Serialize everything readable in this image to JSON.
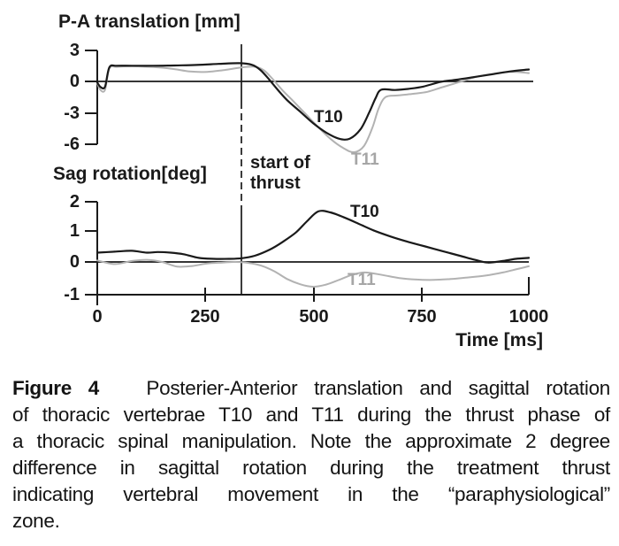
{
  "caption": {
    "label": "Figure 4",
    "line1_rest": "Posterier-Anterior translation and sagittal rotation",
    "lines": [
      "of thoracic vertebrae T10 and T11 during the thrust phase of",
      "a thoracic spinal manipulation. Note the approximate 2 degree",
      "difference in sagittal rotation during the treatment thrust",
      "indicating vertebral movement in the “paraphysiological”",
      "zone."
    ],
    "full_text": "Figure 4 Posterier-Anterior translation and sagittal rotation of thoracic vertebrae T10 and T11 during the thrust phase of a thoracic spinal manipulation. Note the approximate 2 degree difference in sagittal rotation during the treatment thrust indicating vertebral movement in the “paraphysiological” zone."
  },
  "annotation": {
    "start_of_thrust_label": "start of\nthrust",
    "thrust_line_time_ms": 334
  },
  "colors": {
    "t10": "#1a1a1a",
    "t11": "#b2b2b2",
    "t11_label": "#a6a6a6",
    "axis": "#1a1a1a"
  },
  "chart_data": [
    {
      "type": "line",
      "title": "P-A translation [mm]",
      "xlabel": "Time [ms]",
      "ylabel": "P-A translation [mm]",
      "xlim": [
        0,
        1000
      ],
      "ylim": [
        -6,
        3
      ],
      "yticks": [
        3,
        0,
        -3,
        -6
      ],
      "xticks": [
        0,
        250,
        500,
        750,
        1000
      ],
      "grid": false,
      "legend_position": "inline-labels",
      "annotations": [
        "vertical dashed line at ~334 ms marks start of thrust"
      ],
      "series": [
        {
          "name": "T10",
          "color": "#1a1a1a",
          "points": [
            [
              0,
              -0.1
            ],
            [
              8,
              -0.55
            ],
            [
              18,
              -0.5
            ],
            [
              28,
              1.35
            ],
            [
              45,
              1.5
            ],
            [
              80,
              1.5
            ],
            [
              130,
              1.5
            ],
            [
              180,
              1.53
            ],
            [
              230,
              1.58
            ],
            [
              280,
              1.68
            ],
            [
              330,
              1.75
            ],
            [
              358,
              1.6
            ],
            [
              378,
              1.1
            ],
            [
              398,
              0.2
            ],
            [
              418,
              -0.8
            ],
            [
              440,
              -1.8
            ],
            [
              470,
              -2.9
            ],
            [
              500,
              -4.0
            ],
            [
              530,
              -4.9
            ],
            [
              560,
              -5.5
            ],
            [
              585,
              -5.5
            ],
            [
              610,
              -4.6
            ],
            [
              630,
              -3.0
            ],
            [
              645,
              -1.6
            ],
            [
              658,
              -0.8
            ],
            [
              690,
              -0.82
            ],
            [
              720,
              -0.72
            ],
            [
              755,
              -0.5
            ],
            [
              795,
              -0.05
            ],
            [
              830,
              0.15
            ],
            [
              870,
              0.4
            ],
            [
              910,
              0.65
            ],
            [
              955,
              0.95
            ],
            [
              1000,
              1.15
            ]
          ]
        },
        {
          "name": "T11",
          "color": "#b2b2b2",
          "points": [
            [
              0,
              -0.2
            ],
            [
              8,
              -0.85
            ],
            [
              18,
              -0.8
            ],
            [
              28,
              1.25
            ],
            [
              45,
              1.4
            ],
            [
              80,
              1.45
            ],
            [
              130,
              1.38
            ],
            [
              175,
              1.2
            ],
            [
              215,
              0.95
            ],
            [
              255,
              0.92
            ],
            [
              295,
              1.1
            ],
            [
              330,
              1.32
            ],
            [
              362,
              1.42
            ],
            [
              385,
              1.1
            ],
            [
              405,
              0.3
            ],
            [
              428,
              -0.8
            ],
            [
              452,
              -1.8
            ],
            [
              480,
              -3.0
            ],
            [
              510,
              -4.3
            ],
            [
              540,
              -5.5
            ],
            [
              570,
              -6.4
            ],
            [
              595,
              -6.8
            ],
            [
              618,
              -6.2
            ],
            [
              638,
              -4.4
            ],
            [
              652,
              -2.6
            ],
            [
              668,
              -1.5
            ],
            [
              695,
              -1.35
            ],
            [
              730,
              -1.2
            ],
            [
              765,
              -1.0
            ],
            [
              800,
              -0.55
            ],
            [
              840,
              -0.05
            ],
            [
              880,
              0.45
            ],
            [
              920,
              0.75
            ],
            [
              958,
              0.93
            ],
            [
              1000,
              0.8
            ]
          ]
        }
      ]
    },
    {
      "type": "line",
      "title": "Sag rotation[deg]",
      "xlabel": "Time [ms]",
      "ylabel": "Sag rotation[deg]",
      "xlim": [
        0,
        1000
      ],
      "ylim": [
        -1,
        2
      ],
      "yticks": [
        2,
        1,
        0,
        -1
      ],
      "xticks": [
        0,
        250,
        500,
        750,
        1000
      ],
      "grid": false,
      "legend_position": "inline-labels",
      "annotations": [
        "vertical dashed line at ~334 ms marks start of thrust"
      ],
      "series": [
        {
          "name": "T10",
          "color": "#1a1a1a",
          "points": [
            [
              0,
              0.3
            ],
            [
              40,
              0.33
            ],
            [
              80,
              0.36
            ],
            [
              115,
              0.3
            ],
            [
              140,
              0.32
            ],
            [
              170,
              0.3
            ],
            [
              200,
              0.25
            ],
            [
              235,
              0.13
            ],
            [
              270,
              0.1
            ],
            [
              305,
              0.1
            ],
            [
              335,
              0.12
            ],
            [
              365,
              0.2
            ],
            [
              400,
              0.4
            ],
            [
              430,
              0.65
            ],
            [
              460,
              0.95
            ],
            [
              485,
              1.3
            ],
            [
              512,
              1.63
            ],
            [
              540,
              1.6
            ],
            [
              570,
              1.45
            ],
            [
              600,
              1.27
            ],
            [
              640,
              1.02
            ],
            [
              680,
              0.82
            ],
            [
              720,
              0.65
            ],
            [
              760,
              0.5
            ],
            [
              800,
              0.35
            ],
            [
              840,
              0.2
            ],
            [
              875,
              0.07
            ],
            [
              905,
              -0.02
            ],
            [
              940,
              0.03
            ],
            [
              970,
              0.1
            ],
            [
              1000,
              0.13
            ]
          ]
        },
        {
          "name": "T11",
          "color": "#b2b2b2",
          "points": [
            [
              0,
              0.05
            ],
            [
              40,
              -0.07
            ],
            [
              80,
              0.03
            ],
            [
              115,
              0.07
            ],
            [
              150,
              0.0
            ],
            [
              185,
              -0.15
            ],
            [
              220,
              -0.13
            ],
            [
              255,
              -0.05
            ],
            [
              290,
              -0.02
            ],
            [
              320,
              0.0
            ],
            [
              350,
              -0.03
            ],
            [
              380,
              -0.12
            ],
            [
              410,
              -0.3
            ],
            [
              440,
              -0.55
            ],
            [
              470,
              -0.72
            ],
            [
              500,
              -0.8
            ],
            [
              530,
              -0.73
            ],
            [
              560,
              -0.58
            ],
            [
              590,
              -0.42
            ],
            [
              620,
              -0.34
            ],
            [
              660,
              -0.42
            ],
            [
              700,
              -0.52
            ],
            [
              740,
              -0.57
            ],
            [
              780,
              -0.58
            ],
            [
              820,
              -0.55
            ],
            [
              860,
              -0.5
            ],
            [
              900,
              -0.44
            ],
            [
              940,
              -0.34
            ],
            [
              970,
              -0.24
            ],
            [
              1000,
              -0.14
            ]
          ]
        }
      ]
    }
  ]
}
